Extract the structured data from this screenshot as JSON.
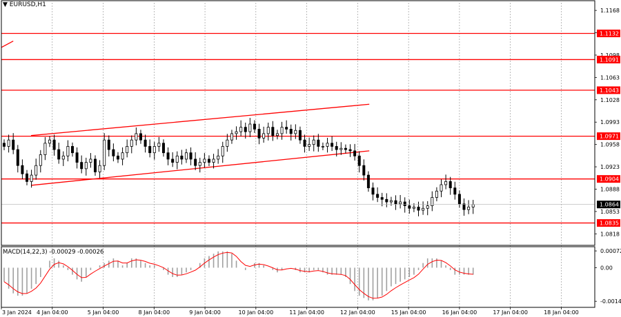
{
  "header": {
    "symbol": "EURUSD,H1"
  },
  "colors": {
    "level_line": "#ff0000",
    "channel": "#ff0000",
    "level_label_bg": "#ff0000",
    "level_label_text": "#ffffff",
    "current_price_bg": "#000000",
    "current_price_text": "#ffffff",
    "candles": "#000000",
    "grid": "#8c8c8c",
    "macd_signal": "#ff0000",
    "macd_hist": "#a0a0a0"
  },
  "chart_data": [
    {
      "type": "candlestick",
      "title": "EURUSD,H1",
      "grid": true,
      "ylim": [
        1.08,
        1.118
      ],
      "y_ticks": [
        "1.1168",
        "1.1133",
        "1.1098",
        "1.1063",
        "1.1028",
        "1.0993",
        "1.0958",
        "1.0923",
        "1.0888",
        "1.0853",
        "1.0818"
      ],
      "x_ticks": [
        "3 Jan 2024",
        "4 Jan 04:00",
        "5 Jan 04:00",
        "8 Jan 04:00",
        "9 Jan 04:00",
        "10 Jan 04:00",
        "11 Jan 04:00",
        "12 Jan 04:00",
        "15 Jan 04:00",
        "16 Jan 04:00",
        "17 Jan 04:00",
        "18 Jan 04:00"
      ],
      "levels": [
        {
          "value": 1.1132,
          "label": "1.1132"
        },
        {
          "value": 1.1091,
          "label": "1.1091"
        },
        {
          "value": 1.1043,
          "label": "1.1043"
        },
        {
          "value": 1.0971,
          "label": "1.0971"
        },
        {
          "value": 1.0904,
          "label": "1.0904"
        },
        {
          "value": 1.0835,
          "label": "1.0835"
        }
      ],
      "current_price": {
        "value": 1.0864,
        "label": "1.0864"
      },
      "channel": {
        "upper": [
          [
            0.05,
            1.0972
          ],
          [
            0.62,
            1.1021
          ]
        ],
        "lower": [
          [
            0.05,
            1.0894
          ],
          [
            0.62,
            1.0948
          ]
        ]
      },
      "closes": [
        1.0955,
        1.0965,
        1.095,
        1.0925,
        1.0912,
        1.09,
        1.091,
        1.0925,
        1.0942,
        1.096,
        1.0965,
        1.095,
        1.0935,
        1.094,
        1.0955,
        1.0945,
        1.093,
        1.092,
        1.093,
        1.0935,
        1.0915,
        1.0925,
        1.0965,
        1.095,
        1.094,
        1.0935,
        1.0945,
        1.0955,
        1.0965,
        1.0975,
        1.0965,
        1.0955,
        1.0945,
        1.0955,
        1.096,
        1.0945,
        1.0935,
        1.093,
        1.094,
        1.0935,
        1.0945,
        1.0935,
        1.0925,
        1.093,
        1.0935,
        1.093,
        1.0935,
        1.094,
        1.0955,
        1.0965,
        1.0975,
        1.0978,
        1.0985,
        1.0978,
        1.099,
        1.0982,
        1.0968,
        1.0975,
        1.0985,
        1.0972,
        1.0975,
        1.0985,
        1.0982,
        1.0975,
        1.098,
        1.0965,
        1.0955,
        1.0958,
        1.0965,
        1.0955,
        1.0955,
        1.096,
        1.0955,
        1.095,
        1.0952,
        1.095,
        1.0948,
        1.094,
        1.0925,
        1.091,
        1.089,
        1.088,
        1.0875,
        1.0872,
        1.0868,
        1.087,
        1.0865,
        1.0868,
        1.0862,
        1.0858,
        1.086,
        1.0855,
        1.0858,
        1.0862,
        1.0875,
        1.0885,
        1.0895,
        1.09,
        1.089,
        1.088,
        1.0865,
        1.0856,
        1.086,
        1.0864
      ]
    },
    {
      "type": "bar",
      "title": "MACD(14,22,3) -0.00029 -0.00026",
      "ylim": [
        -0.0017,
        0.0009
      ],
      "y_ticks": [
        "0.00072",
        "0.00",
        "-0.00144"
      ],
      "hist": [
        -0.0006,
        -0.0009,
        -0.0011,
        -0.0012,
        -0.0012,
        -0.0011,
        -0.0009,
        -0.0007,
        -0.0004,
        0.0,
        0.0003,
        0.0004,
        0.0003,
        0.0001,
        -0.0001,
        -0.0003,
        -0.0005,
        -0.0006,
        -0.0004,
        -0.0001,
        0.0,
        0.0001,
        0.0002,
        0.0003,
        0.0004,
        0.0003,
        0.0001,
        0.0002,
        0.0004,
        0.0004,
        0.0003,
        0.0002,
        0.0001,
        0.0001,
        0.0,
        -0.0001,
        -0.0003,
        -0.0004,
        -0.0004,
        -0.0003,
        -0.0002,
        -0.0001,
        0.0,
        0.0002,
        0.0004,
        0.0005,
        0.0006,
        0.0007,
        0.0007,
        0.0007,
        0.0006,
        0.0003,
        0.0,
        -0.0001,
        0.0,
        0.0002,
        0.0002,
        0.0001,
        0.0,
        -0.0001,
        -0.0002,
        -0.0001,
        0.0,
        0.0,
        -0.0001,
        -0.0002,
        -0.0002,
        -0.0002,
        -0.0001,
        -0.0001,
        -0.0002,
        -0.0003,
        -0.0003,
        -0.0003,
        -0.0003,
        -0.0004,
        -0.0007,
        -0.001,
        -0.0012,
        -0.0013,
        -0.0014,
        -0.0014,
        -0.0013,
        -0.0012,
        -0.001,
        -0.0008,
        -0.0007,
        -0.0006,
        -0.0005,
        -0.0004,
        -0.0003,
        -0.0001,
        0.0002,
        0.0004,
        0.0004,
        0.0004,
        0.0003,
        0.0001,
        -0.0001,
        -0.0003,
        -0.0003,
        -0.0003,
        -0.0003,
        -0.0003
      ]
    }
  ]
}
